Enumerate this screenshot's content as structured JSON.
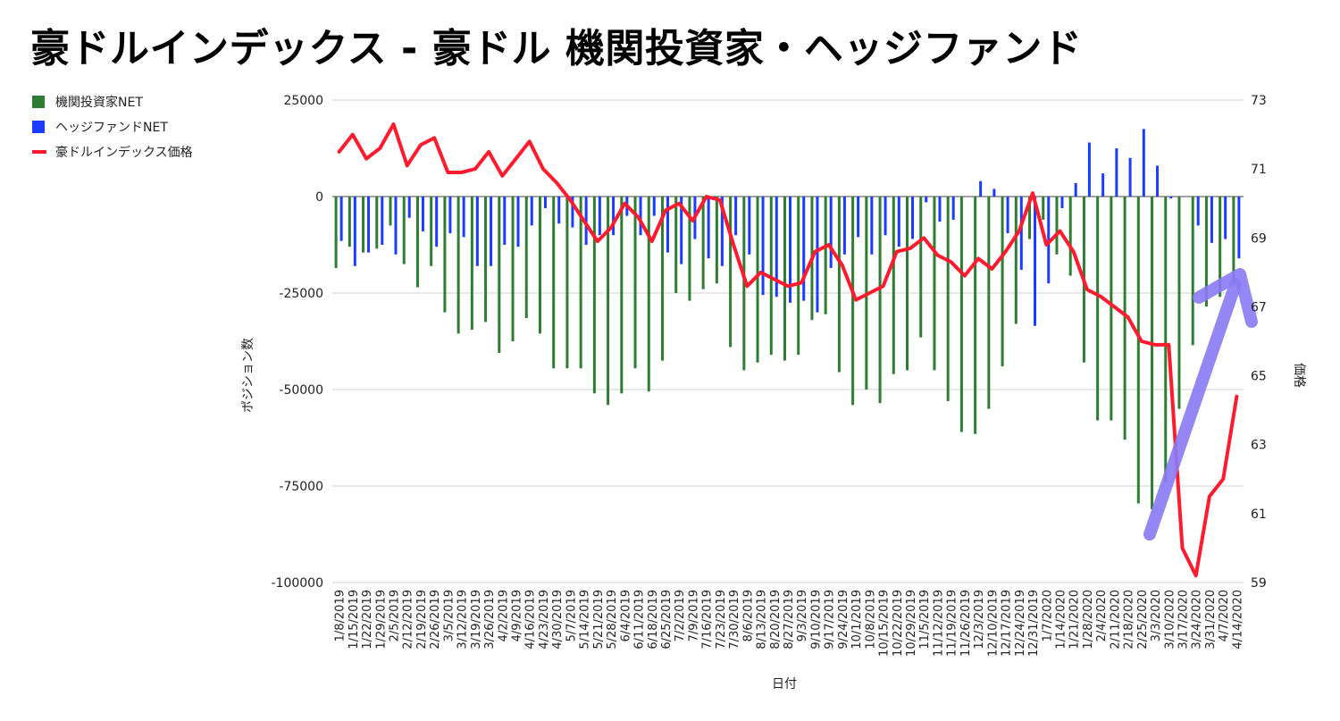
{
  "chart_data": {
    "type": "bar+line",
    "title": "豪ドルインデックス - 豪ドル 機関投資家・ヘッジファンド",
    "xlabel": "日付",
    "ylabel_left": "ポジション数",
    "ylabel_right": "価格",
    "ylim_left": [
      -100000,
      25000
    ],
    "ylim_right": [
      59,
      73
    ],
    "yticks_left": [
      "25000",
      "0",
      "-25000",
      "-50000",
      "-75000",
      "-100000"
    ],
    "yticks_left_values": [
      25000,
      0,
      -25000,
      -50000,
      -75000,
      -100000
    ],
    "yticks_right": [
      "73",
      "71",
      "69",
      "67",
      "65",
      "63",
      "61",
      "59"
    ],
    "yticks_right_values": [
      73,
      71,
      69,
      67,
      65,
      63,
      61,
      59
    ],
    "categories": [
      "1/8/2019",
      "1/15/2019",
      "1/22/2019",
      "1/29/2019",
      "2/5/2019",
      "2/12/2019",
      "2/19/2019",
      "2/26/2019",
      "3/5/2019",
      "3/12/2019",
      "3/19/2019",
      "3/26/2019",
      "4/2/2019",
      "4/9/2019",
      "4/16/2019",
      "4/23/2019",
      "4/30/2019",
      "5/7/2019",
      "5/14/2019",
      "5/21/2019",
      "5/28/2019",
      "6/4/2019",
      "6/11/2019",
      "6/18/2019",
      "6/25/2019",
      "7/2/2019",
      "7/9/2019",
      "7/16/2019",
      "7/23/2019",
      "7/30/2019",
      "8/6/2019",
      "8/13/2019",
      "8/20/2019",
      "8/27/2019",
      "9/3/2019",
      "9/10/2019",
      "9/17/2019",
      "9/24/2019",
      "10/1/2019",
      "10/8/2019",
      "10/15/2019",
      "10/22/2019",
      "10/29/2019",
      "11/5/2019",
      "11/12/2019",
      "11/19/2019",
      "11/26/2019",
      "12/3/2019",
      "12/10/2019",
      "12/17/2019",
      "12/24/2019",
      "12/31/2019",
      "1/7/2020",
      "1/14/2020",
      "1/21/2020",
      "1/28/2020",
      "2/4/2020",
      "2/11/2020",
      "2/18/2020",
      "2/25/2020",
      "3/3/2020",
      "3/10/2020",
      "3/17/2020",
      "3/24/2020",
      "3/31/2020",
      "4/7/2020",
      "4/14/2020"
    ],
    "series": [
      {
        "name": "機関投資家NET",
        "type": "bar",
        "axis": "left",
        "color": "#2e7d32",
        "values": [
          -18500,
          -13000,
          -14500,
          -13500,
          -7500,
          -17500,
          -23500,
          -18000,
          -30000,
          -35500,
          -34500,
          -32500,
          -40500,
          -37500,
          -31500,
          -35500,
          -44500,
          -44500,
          -44500,
          -51000,
          -54000,
          -51000,
          -44500,
          -50500,
          -42500,
          -25000,
          -27000,
          -24000,
          -22500,
          -39000,
          -45000,
          -43000,
          -41000,
          -42500,
          -41000,
          -32000,
          -30500,
          -45500,
          -54000,
          -50000,
          -53500,
          -46000,
          -45000,
          -36500,
          -45000,
          -53000,
          -61000,
          -61500,
          -55000,
          -44000,
          -33000,
          -11000,
          -6000,
          -15000,
          -20500,
          -43000,
          -58000,
          -58000,
          -63000,
          -79500,
          -81000,
          -74000,
          -55000,
          -38500,
          -28500,
          -26000,
          -22500
        ]
      },
      {
        "name": "ヘッジファンドNET",
        "type": "bar",
        "axis": "left",
        "color": "#1a3cff",
        "values": [
          -11500,
          -18000,
          -14500,
          -12500,
          -15000,
          -5500,
          -9000,
          -13000,
          -9500,
          -10500,
          -18000,
          -18000,
          -12500,
          -13000,
          -7500,
          -3000,
          -7000,
          -8000,
          -12500,
          -10000,
          -10000,
          -5000,
          -10000,
          -5000,
          -14500,
          -17500,
          -11000,
          -16000,
          -18000,
          -10000,
          -15000,
          -25500,
          -26000,
          -27500,
          -27000,
          -30000,
          -18500,
          -15000,
          -10500,
          -15000,
          -10000,
          -13000,
          -11000,
          -1500,
          -6500,
          -6000,
          0,
          4000,
          2000,
          -9500,
          -19000,
          -33500,
          -22500,
          -3000,
          3500,
          14000,
          6000,
          12500,
          10000,
          17500,
          8000,
          -500,
          0,
          -7500,
          -12000,
          -11000,
          -16000
        ]
      },
      {
        "name": "豪ドルインデックス価格",
        "type": "line",
        "axis": "right",
        "color": "#ff1a2e",
        "values": [
          71.5,
          72.0,
          71.3,
          71.6,
          72.3,
          71.1,
          71.7,
          71.9,
          70.9,
          70.9,
          71.0,
          71.5,
          70.8,
          71.3,
          71.8,
          71.0,
          70.6,
          70.1,
          69.5,
          68.9,
          69.3,
          70.0,
          69.6,
          68.9,
          69.8,
          70.0,
          69.5,
          70.2,
          70.1,
          68.8,
          67.6,
          68.0,
          67.8,
          67.6,
          67.7,
          68.6,
          68.8,
          68.2,
          67.2,
          67.4,
          67.6,
          68.6,
          68.7,
          69.0,
          68.5,
          68.3,
          67.9,
          68.4,
          68.1,
          68.6,
          69.2,
          70.3,
          68.8,
          69.2,
          68.6,
          67.5,
          67.3,
          67.0,
          66.7,
          66.0,
          65.9,
          65.9,
          60.0,
          59.2,
          61.5,
          62.0,
          64.4
        ]
      }
    ],
    "legend": [
      "機関投資家NET",
      "ヘッジファンドNET",
      "豪ドルインデックス価格"
    ],
    "legend_position": "top-left",
    "grid": true,
    "annotation": {
      "type": "arrow",
      "color": "#8a7af5",
      "description": "upward arrow"
    }
  }
}
